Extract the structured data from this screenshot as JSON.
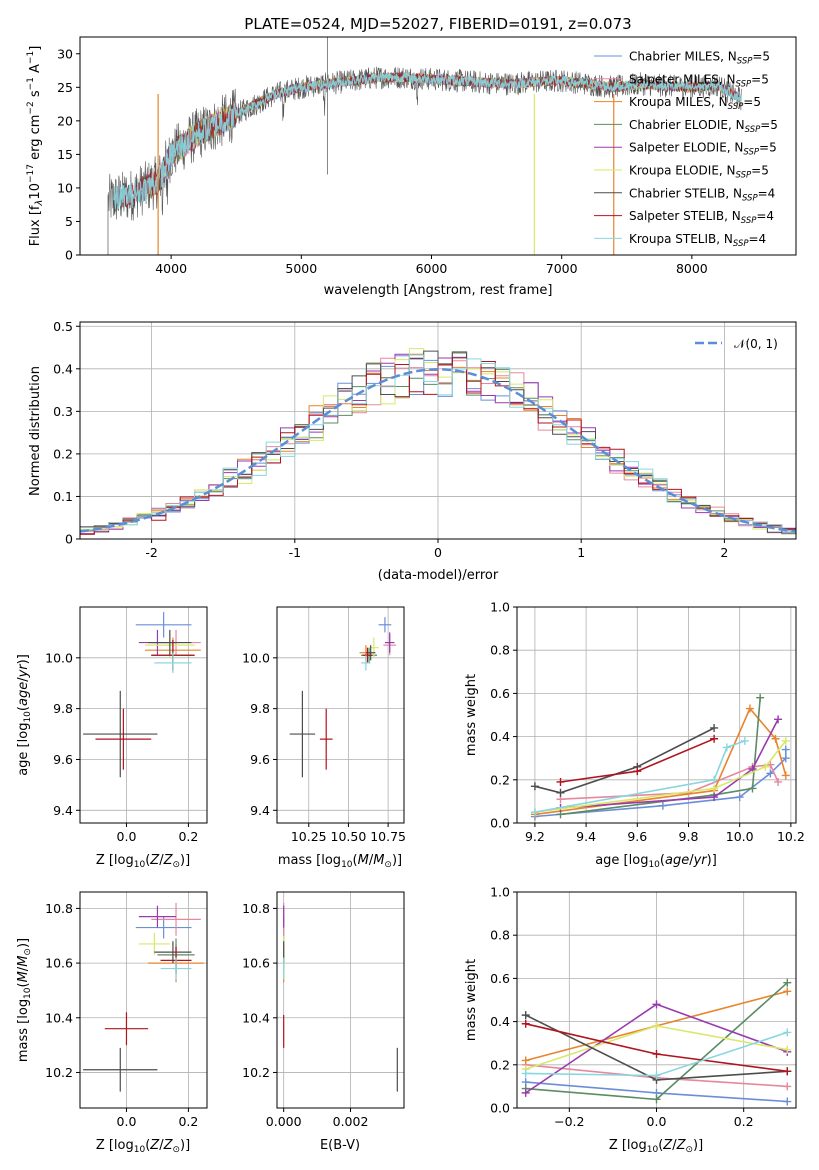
{
  "chart_data": [
    {
      "id": "spectrum",
      "type": "line",
      "title": "PLATE=0524, MJD=52027, FIBERID=0191, z=0.073",
      "xlabel": "wavelength [Angstrom, rest frame]",
      "ylabel": "Flux [f_λ10^-17 erg cm^-2 s^-1 A^-1]",
      "xlim": [
        3300,
        8800
      ],
      "ylim": [
        0,
        32.5
      ],
      "xticks": [
        4000,
        5000,
        6000,
        7000,
        8000
      ],
      "yticks": [
        0,
        5,
        10,
        15,
        20,
        25,
        30
      ],
      "grid": false,
      "legend_position": "top-right",
      "series": [
        {
          "name": "Chabrier MILES, N_SSP=5",
          "color": "#6a8fd8"
        },
        {
          "name": "Salpeter MILES, N_SSP=5",
          "color": "#e6899e"
        },
        {
          "name": "Kroupa MILES, N_SSP=5",
          "color": "#e8842b"
        },
        {
          "name": "Chabrier ELODIE, N_SSP=5",
          "color": "#5b8c63"
        },
        {
          "name": "Salpeter ELODIE, N_SSP=5",
          "color": "#9a3ab0"
        },
        {
          "name": "Kroupa ELODIE, N_SSP=5",
          "color": "#d8e86a"
        },
        {
          "name": "Chabrier STELIB, N_SSP=4",
          "color": "#4d4d4d"
        },
        {
          "name": "Salpeter STELIB, N_SSP=4",
          "color": "#b0141e"
        },
        {
          "name": "Kroupa STELIB, N_SSP=4",
          "color": "#88d6e0"
        }
      ],
      "continuum": {
        "x": [
          3500,
          3700,
          3900,
          4000,
          4200,
          4400,
          4600,
          4800,
          5000,
          5200,
          5400,
          5600,
          5800,
          6000,
          6200,
          6400,
          6600,
          6800,
          7000,
          7200,
          7400,
          7600,
          7800,
          8000,
          8200,
          8400
        ],
        "y": [
          8,
          9,
          11,
          15,
          18,
          20,
          22,
          24,
          25,
          25.5,
          26,
          26.5,
          26.5,
          26.2,
          26,
          25.7,
          25.5,
          25.8,
          26,
          25.5,
          25,
          25.5,
          25.2,
          25,
          25.3,
          23
        ]
      }
    },
    {
      "id": "residuals",
      "type": "histogram",
      "xlabel": "(data-model)/error",
      "ylabel": "Normed distribution",
      "xlim": [
        -2.5,
        2.5
      ],
      "ylim": [
        0,
        0.51
      ],
      "xticks": [
        -2,
        -1,
        0,
        1,
        2
      ],
      "yticks": [
        0.0,
        0.1,
        0.2,
        0.3,
        0.4,
        0.5
      ],
      "grid": true,
      "legend_position": "top-right",
      "legend_label": "𝒩(0, 1)",
      "gaussian": {
        "mu": 0,
        "sigma": 1,
        "color": "#5b8ed6"
      }
    },
    {
      "id": "age-vs-Z",
      "type": "errorbar",
      "xlabel": "Z [log10(Z/Z⊙)]",
      "ylabel": "age [log10(age/yr)]",
      "xlim": [
        -0.15,
        0.26
      ],
      "ylim": [
        9.35,
        10.2
      ],
      "xticks": [
        0.0,
        0.2
      ],
      "xticklabels": [
        "0.0",
        "0.2"
      ],
      "yticks": [
        9.4,
        9.6,
        9.8,
        10.0
      ],
      "yticklabels": [
        "9.4",
        "9.6",
        "9.8",
        "10.0"
      ],
      "grid": true,
      "points": [
        {
          "x": 0.12,
          "y": 10.13,
          "xerr": 0.09,
          "yerr": 0.05,
          "color": "#6a8fd8"
        },
        {
          "x": 0.16,
          "y": 10.06,
          "xerr": 0.08,
          "yerr": 0.05,
          "color": "#e6899e"
        },
        {
          "x": 0.15,
          "y": 10.03,
          "xerr": 0.09,
          "yerr": 0.05,
          "color": "#e8842b"
        },
        {
          "x": 0.15,
          "y": 10.01,
          "xerr": 0.07,
          "yerr": 0.06,
          "color": "#5b8c63"
        },
        {
          "x": 0.1,
          "y": 10.06,
          "xerr": 0.06,
          "yerr": 0.05,
          "color": "#9a3ab0"
        },
        {
          "x": 0.14,
          "y": 10.05,
          "xerr": 0.08,
          "yerr": 0.05,
          "color": "#d8e86a"
        },
        {
          "x": 0.14,
          "y": 10.06,
          "xerr": 0.07,
          "yerr": 0.05,
          "color": "#4d4d4d"
        },
        {
          "x": 0.15,
          "y": 10.01,
          "xerr": 0.07,
          "yerr": 0.06,
          "color": "#b0141e"
        },
        {
          "x": 0.15,
          "y": 9.98,
          "xerr": 0.06,
          "yerr": 0.04,
          "color": "#88d6e0"
        },
        {
          "x": -0.02,
          "y": 9.7,
          "xerr": 0.12,
          "yerr": 0.17,
          "color": "#4d4d4d"
        },
        {
          "x": -0.01,
          "y": 9.68,
          "xerr": 0.09,
          "yerr": 0.12,
          "color": "#b0141e"
        }
      ]
    },
    {
      "id": "age-vs-mass",
      "type": "errorbar",
      "xlabel": "mass [log10(M/M⊙)]",
      "ylabel": "",
      "xlim": [
        10.05,
        10.85
      ],
      "ylim": [
        9.35,
        10.2
      ],
      "xticks": [
        10.25,
        10.5,
        10.75
      ],
      "xticklabels": [
        "10.25",
        "10.50",
        "10.75"
      ],
      "yticks": [
        9.4,
        9.6,
        9.8,
        10.0
      ],
      "yticklabels": [
        "9.4",
        "9.6",
        "9.8",
        "10.0"
      ],
      "grid": true,
      "points": [
        {
          "x": 10.73,
          "y": 10.13,
          "xerr": 0.04,
          "yerr": 0.03,
          "color": "#6a8fd8"
        },
        {
          "x": 10.76,
          "y": 10.05,
          "xerr": 0.04,
          "yerr": 0.04,
          "color": "#e6899e"
        },
        {
          "x": 10.61,
          "y": 10.02,
          "xerr": 0.04,
          "yerr": 0.03,
          "color": "#e8842b"
        },
        {
          "x": 10.63,
          "y": 10.01,
          "xerr": 0.05,
          "yerr": 0.03,
          "color": "#5b8c63"
        },
        {
          "x": 10.76,
          "y": 10.06,
          "xerr": 0.03,
          "yerr": 0.04,
          "color": "#9a3ab0"
        },
        {
          "x": 10.66,
          "y": 10.04,
          "xerr": 0.03,
          "yerr": 0.04,
          "color": "#d8e86a"
        },
        {
          "x": 10.64,
          "y": 10.02,
          "xerr": 0.03,
          "yerr": 0.03,
          "color": "#4d4d4d"
        },
        {
          "x": 10.62,
          "y": 10.01,
          "xerr": 0.03,
          "yerr": 0.03,
          "color": "#b0141e"
        },
        {
          "x": 10.61,
          "y": 9.98,
          "xerr": 0.03,
          "yerr": 0.03,
          "color": "#88d6e0"
        },
        {
          "x": 10.21,
          "y": 9.7,
          "xerr": 0.08,
          "yerr": 0.17,
          "color": "#4d4d4d"
        },
        {
          "x": 10.36,
          "y": 9.68,
          "xerr": 0.04,
          "yerr": 0.12,
          "color": "#b0141e"
        }
      ]
    },
    {
      "id": "weights-vs-age",
      "type": "line",
      "xlabel": "age [log10(age/yr)]",
      "ylabel": "mass weight",
      "xlim": [
        9.13,
        10.22
      ],
      "ylim": [
        0,
        1.0
      ],
      "xticks": [
        9.2,
        9.4,
        9.6,
        9.8,
        10.0,
        10.2
      ],
      "xticklabels": [
        "9.2",
        "9.4",
        "9.6",
        "9.8",
        "10.0",
        "10.2"
      ],
      "yticks": [
        0.0,
        0.2,
        0.4,
        0.6,
        0.8,
        1.0
      ],
      "yticklabels": [
        "0.0",
        "0.2",
        "0.4",
        "0.6",
        "0.8",
        "1.0"
      ],
      "grid": true,
      "series": [
        {
          "color": "#6a8fd8",
          "x": [
            9.2,
            9.7,
            10.0,
            10.12,
            10.18,
            10.18
          ],
          "y": [
            0.03,
            0.08,
            0.12,
            0.23,
            0.3,
            0.34
          ]
        },
        {
          "color": "#e6899e",
          "x": [
            9.3,
            9.8,
            10.05,
            10.12,
            10.15
          ],
          "y": [
            0.11,
            0.14,
            0.26,
            0.27,
            0.19
          ]
        },
        {
          "color": "#e8842b",
          "x": [
            9.2,
            9.9,
            10.04,
            10.14,
            10.18
          ],
          "y": [
            0.04,
            0.15,
            0.53,
            0.39,
            0.22
          ]
        },
        {
          "color": "#5b8c63",
          "x": [
            9.3,
            9.9,
            10.05,
            10.08
          ],
          "y": [
            0.04,
            0.13,
            0.16,
            0.58
          ]
        },
        {
          "color": "#9a3ab0",
          "x": [
            9.3,
            9.9,
            10.05,
            10.15
          ],
          "y": [
            0.07,
            0.12,
            0.25,
            0.48
          ]
        },
        {
          "color": "#d8e86a",
          "x": [
            9.2,
            9.9,
            10.1,
            10.18
          ],
          "y": [
            0.05,
            0.16,
            0.26,
            0.38
          ]
        },
        {
          "color": "#4d4d4d",
          "x": [
            9.2,
            9.3,
            9.6,
            9.9
          ],
          "y": [
            0.17,
            0.14,
            0.26,
            0.44
          ]
        },
        {
          "color": "#b0141e",
          "x": [
            9.3,
            9.6,
            9.9
          ],
          "y": [
            0.19,
            0.24,
            0.39
          ]
        },
        {
          "color": "#88d6e0",
          "x": [
            9.2,
            9.9,
            9.95,
            10.02
          ],
          "y": [
            0.05,
            0.2,
            0.35,
            0.38
          ]
        }
      ]
    },
    {
      "id": "mass-vs-Z",
      "type": "errorbar",
      "xlabel": "Z [log10(Z/Z⊙)]",
      "ylabel": "mass [log10(M/M⊙)]",
      "xlim": [
        -0.15,
        0.26
      ],
      "ylim": [
        10.07,
        10.86
      ],
      "xticks": [
        0.0,
        0.2
      ],
      "xticklabels": [
        "0.0",
        "0.2"
      ],
      "yticks": [
        10.2,
        10.4,
        10.6,
        10.8
      ],
      "yticklabels": [
        "10.2",
        "10.4",
        "10.6",
        "10.8"
      ],
      "grid": true,
      "points": [
        {
          "x": 0.12,
          "y": 10.73,
          "xerr": 0.09,
          "yerr": 0.04,
          "color": "#6a8fd8"
        },
        {
          "x": 0.16,
          "y": 10.76,
          "xerr": 0.08,
          "yerr": 0.06,
          "color": "#e6899e"
        },
        {
          "x": 0.16,
          "y": 10.6,
          "xerr": 0.09,
          "yerr": 0.07,
          "color": "#e8842b"
        },
        {
          "x": 0.16,
          "y": 10.63,
          "xerr": 0.06,
          "yerr": 0.06,
          "color": "#5b8c63"
        },
        {
          "x": 0.1,
          "y": 10.77,
          "xerr": 0.06,
          "yerr": 0.04,
          "color": "#9a3ab0"
        },
        {
          "x": 0.09,
          "y": 10.67,
          "xerr": 0.05,
          "yerr": 0.04,
          "color": "#d8e86a"
        },
        {
          "x": 0.15,
          "y": 10.64,
          "xerr": 0.06,
          "yerr": 0.04,
          "color": "#4d4d4d"
        },
        {
          "x": 0.16,
          "y": 10.61,
          "xerr": 0.05,
          "yerr": 0.05,
          "color": "#b0141e"
        },
        {
          "x": 0.16,
          "y": 10.58,
          "xerr": 0.05,
          "yerr": 0.04,
          "color": "#88d6e0"
        },
        {
          "x": -0.02,
          "y": 10.21,
          "xerr": 0.12,
          "yerr": 0.08,
          "color": "#4d4d4d"
        },
        {
          "x": 0.0,
          "y": 10.36,
          "xerr": 0.07,
          "yerr": 0.06,
          "color": "#b0141e"
        }
      ]
    },
    {
      "id": "mass-vs-ebv",
      "type": "errorbar",
      "xlabel": "E(B-V)",
      "ylabel": "",
      "xlim": [
        -0.0002,
        0.0036
      ],
      "ylim": [
        10.07,
        10.86
      ],
      "xticks": [
        0.0,
        0.002
      ],
      "xticklabels": [
        "0.000",
        "0.002"
      ],
      "yticks": [
        10.2,
        10.4,
        10.6,
        10.8
      ],
      "yticklabels": [
        "10.2",
        "10.4",
        "10.6",
        "10.8"
      ],
      "grid": true,
      "points": [
        {
          "x": 0.0,
          "y": 10.73,
          "yerr": 0.04,
          "color": "#6a8fd8"
        },
        {
          "x": 0.0,
          "y": 10.76,
          "yerr": 0.06,
          "color": "#e6899e"
        },
        {
          "x": 0.0,
          "y": 10.6,
          "yerr": 0.07,
          "color": "#e8842b"
        },
        {
          "x": 0.0,
          "y": 10.63,
          "yerr": 0.06,
          "color": "#5b8c63"
        },
        {
          "x": 0.0,
          "y": 10.77,
          "yerr": 0.04,
          "color": "#9a3ab0"
        },
        {
          "x": 0.0,
          "y": 10.62,
          "yerr": 0.08,
          "color": "#d8e86a"
        },
        {
          "x": 0.0,
          "y": 10.64,
          "yerr": 0.04,
          "color": "#4d4d4d"
        },
        {
          "x": 0.0,
          "y": 10.35,
          "yerr": 0.06,
          "color": "#b0141e"
        },
        {
          "x": 0.0,
          "y": 10.58,
          "yerr": 0.04,
          "color": "#88d6e0"
        },
        {
          "x": 0.0034,
          "y": 10.21,
          "yerr": 0.08,
          "color": "#4d4d4d"
        }
      ]
    },
    {
      "id": "weights-vs-Z",
      "type": "line",
      "xlabel": "Z [log10(Z/Z⊙)]",
      "ylabel": "mass weight",
      "xlim": [
        -0.32,
        0.32
      ],
      "ylim": [
        0,
        1.0
      ],
      "xticks": [
        -0.2,
        0.0,
        0.2
      ],
      "xticklabels": [
        "−0.2",
        "0.0",
        "0.2"
      ],
      "yticks": [
        0.0,
        0.2,
        0.4,
        0.6,
        0.8,
        1.0
      ],
      "yticklabels": [
        "0.0",
        "0.2",
        "0.4",
        "0.6",
        "0.8",
        "1.0"
      ],
      "grid": true,
      "series": [
        {
          "color": "#6a8fd8",
          "x": [
            -0.3,
            0.0,
            0.3
          ],
          "y": [
            0.12,
            0.07,
            0.03
          ]
        },
        {
          "color": "#e6899e",
          "x": [
            -0.3,
            0.0,
            0.3
          ],
          "y": [
            0.2,
            0.14,
            0.1
          ]
        },
        {
          "color": "#e8842b",
          "x": [
            -0.3,
            0.0,
            0.3
          ],
          "y": [
            0.22,
            0.38,
            0.54
          ]
        },
        {
          "color": "#5b8c63",
          "x": [
            -0.3,
            0.0,
            0.3
          ],
          "y": [
            0.09,
            0.04,
            0.58
          ]
        },
        {
          "color": "#9a3ab0",
          "x": [
            -0.3,
            0.0,
            0.3
          ],
          "y": [
            0.07,
            0.48,
            0.26
          ]
        },
        {
          "color": "#d8e86a",
          "x": [
            -0.3,
            0.0,
            0.3
          ],
          "y": [
            0.18,
            0.38,
            0.27
          ]
        },
        {
          "color": "#4d4d4d",
          "x": [
            -0.3,
            0.0,
            0.3
          ],
          "y": [
            0.43,
            0.13,
            0.17
          ]
        },
        {
          "color": "#b0141e",
          "x": [
            -0.3,
            0.0,
            0.3
          ],
          "y": [
            0.39,
            0.25,
            0.17
          ]
        },
        {
          "color": "#88d6e0",
          "x": [
            -0.3,
            0.0,
            0.3
          ],
          "y": [
            0.16,
            0.15,
            0.35
          ]
        }
      ]
    }
  ]
}
